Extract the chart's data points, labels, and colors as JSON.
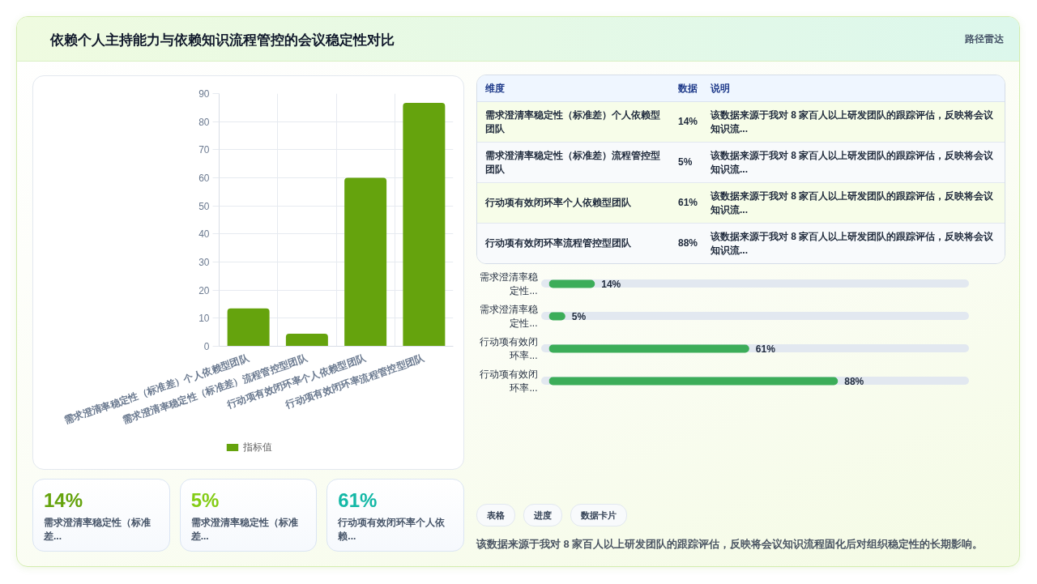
{
  "chart_data": [
    {
      "type": "other",
      "title": "依赖个人主持能力与依赖知识流程管控的会议稳定性对比",
      "annotations": [
        "路径雷达"
      ]
    },
    {
      "type": "bar",
      "categories": [
        "需求澄清率稳定性（标准差）个人依赖型团队",
        "需求澄清率稳定性（标准差）流程管控型团队",
        "行动项有效闭环率个人依赖型团队",
        "行动项有效闭环率流程管控型团队"
      ],
      "series": [
        {
          "name": "指标值",
          "color": "#65a30d",
          "values": [
            13.5,
            4.5,
            60,
            86.7
          ]
        }
      ],
      "ylim": [
        0,
        90
      ],
      "yticks": [
        0,
        10,
        20,
        30,
        40,
        50,
        60,
        70,
        80,
        90
      ],
      "grid": true,
      "legend": "bottom"
    },
    {
      "type": "other",
      "categories": [
        "需求澄清率稳定性（标准差）个人依赖型团队",
        "需求澄清率稳定性（标准差）流程管控型团队",
        "行动项有效闭环率个人依赖型团队",
        "行动项有效闭环率流程管控型团队"
      ],
      "value_labels": [
        "14%",
        "5%",
        "61%",
        "88%"
      ],
      "annotations": [
        "维度",
        "数据",
        "说明",
        "该数据来源于我对 8 家百人以上研发团队的跟踪评估，反映将会议知识流...",
        "该数据来源于我对 8 家百人以上研发团队的跟踪评估，反映将会议知识流...",
        "该数据来源于我对 8 家百人以上研发团队的跟踪评估，反映将会议知识流...",
        "该数据来源于我对 8 家百人以上研发团队的跟踪评估，反映将会议知识流..."
      ]
    },
    {
      "type": "bar",
      "orientation": "horizontal",
      "categories": [
        "需求澄清率稳定性...",
        "需求澄清率稳定性...",
        "行动项有效闭环率...",
        "行动项有效闭环率..."
      ],
      "values": [
        14,
        5,
        61,
        88
      ],
      "color": "#3cad59",
      "value_labels": [
        "14%",
        "5%",
        "61%",
        "88%"
      ],
      "tick_labels": "y"
    },
    {
      "type": "other",
      "categories": [
        "需求澄清率稳定性（标准差...",
        "需求澄清率稳定性（标准差...",
        "行动项有效闭环率个人依赖..."
      ],
      "value_labels": [
        "14%",
        "5%",
        "61%"
      ]
    },
    {
      "type": "other",
      "categories": [
        "表格",
        "进度",
        "数据卡片"
      ],
      "annotations": [
        "该数据来源于我对 8 家百人以上研发团队的跟踪评估，反映将会议知识流程固化后对组织稳定性的长期影响。"
      ]
    }
  ]
}
